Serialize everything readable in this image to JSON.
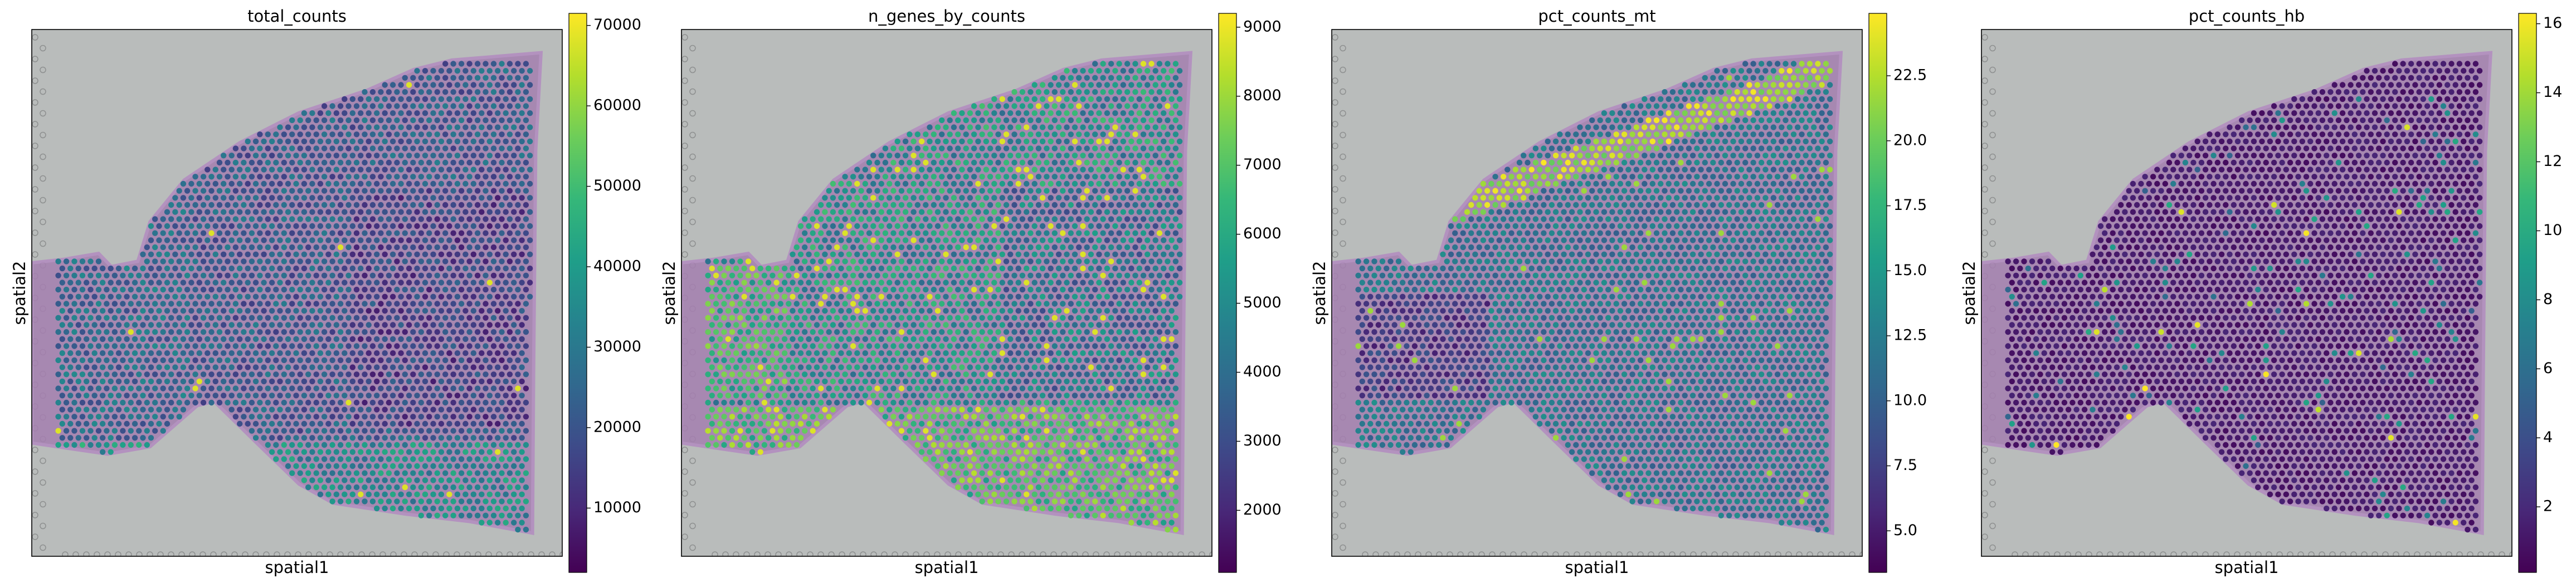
{
  "chart_data": [
    {
      "type": "scatter",
      "title": "total_counts",
      "xlabel": "spatial1",
      "ylabel": "spatial2",
      "colormap": "viridis",
      "colorbar": {
        "range": [
          2000,
          71500
        ],
        "ticks": [
          10000,
          20000,
          30000,
          40000,
          50000,
          60000,
          70000
        ],
        "tick_labels": [
          "10000",
          "20000",
          "30000",
          "40000",
          "50000",
          "60000",
          "70000"
        ]
      },
      "grid": false
    },
    {
      "type": "scatter",
      "title": "n_genes_by_counts",
      "xlabel": "spatial1",
      "ylabel": "spatial2",
      "colormap": "viridis",
      "colorbar": {
        "range": [
          1100,
          9200
        ],
        "ticks": [
          2000,
          3000,
          4000,
          5000,
          6000,
          7000,
          8000,
          9000
        ],
        "tick_labels": [
          "2000",
          "3000",
          "4000",
          "5000",
          "6000",
          "7000",
          "8000",
          "9000"
        ]
      },
      "grid": false
    },
    {
      "type": "scatter",
      "title": "pct_counts_mt",
      "xlabel": "spatial1",
      "ylabel": "spatial2",
      "colormap": "viridis",
      "colorbar": {
        "range": [
          3.4,
          24.9
        ],
        "ticks": [
          5.0,
          7.5,
          10.0,
          12.5,
          15.0,
          17.5,
          20.0,
          22.5
        ],
        "tick_labels": [
          "5.0",
          "7.5",
          "10.0",
          "12.5",
          "15.0",
          "17.5",
          "20.0",
          "22.5"
        ]
      },
      "grid": false
    },
    {
      "type": "scatter",
      "title": "pct_counts_hb",
      "xlabel": "spatial1",
      "ylabel": "spatial2",
      "colormap": "viridis",
      "colorbar": {
        "range": [
          0.1,
          16.3
        ],
        "ticks": [
          2,
          4,
          6,
          8,
          10,
          12,
          14,
          16
        ],
        "tick_labels": [
          "2",
          "4",
          "6",
          "8",
          "10",
          "12",
          "14",
          "16"
        ]
      },
      "grid": false
    }
  ],
  "colors": {
    "background_slide": "#b9bcbb",
    "tissue": "#a57fb0"
  }
}
